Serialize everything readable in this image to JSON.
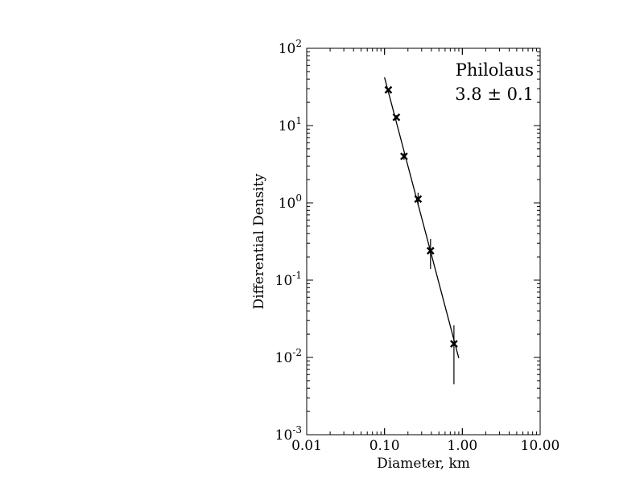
{
  "chart_data": {
    "type": "scatter",
    "annotation": {
      "line1": "Philolaus",
      "line2": "3.8 ± 0.1"
    },
    "xlabel": "Diameter, km",
    "ylabel": "Differential Density",
    "x_scale": "log",
    "y_scale": "log",
    "xlim": [
      0.01,
      10
    ],
    "ylim": [
      0.001,
      100
    ],
    "x_ticks": [
      {
        "value": 0.01,
        "label": "0.01"
      },
      {
        "value": 0.1,
        "label": "0.10"
      },
      {
        "value": 1,
        "label": "1.00"
      },
      {
        "value": 10,
        "label": "10.00"
      }
    ],
    "y_ticks": [
      {
        "value": 0.001,
        "base": "10",
        "exp": "-3"
      },
      {
        "value": 0.01,
        "base": "10",
        "exp": "-2"
      },
      {
        "value": 0.1,
        "base": "10",
        "exp": "-1"
      },
      {
        "value": 1,
        "base": "10",
        "exp": "0"
      },
      {
        "value": 10,
        "base": "10",
        "exp": "1"
      },
      {
        "value": 100,
        "base": "10",
        "exp": "2"
      }
    ],
    "grid": false,
    "points": [
      {
        "x": 0.112,
        "y": 29.0,
        "y_low": 27.5,
        "y_high": 30.5
      },
      {
        "x": 0.142,
        "y": 12.8,
        "y_low": 12.0,
        "y_high": 13.6
      },
      {
        "x": 0.178,
        "y": 4.0,
        "y_low": 3.6,
        "y_high": 4.4
      },
      {
        "x": 0.27,
        "y": 1.12,
        "y_low": 0.93,
        "y_high": 1.35
      },
      {
        "x": 0.39,
        "y": 0.24,
        "y_low": 0.14,
        "y_high": 0.34
      },
      {
        "x": 0.78,
        "y": 0.015,
        "y_low": 0.0045,
        "y_high": 0.026
      }
    ],
    "fit_line": {
      "x": [
        0.1,
        0.9
      ],
      "y": [
        42,
        0.0098
      ]
    },
    "marker": "x",
    "color": "#000000"
  }
}
